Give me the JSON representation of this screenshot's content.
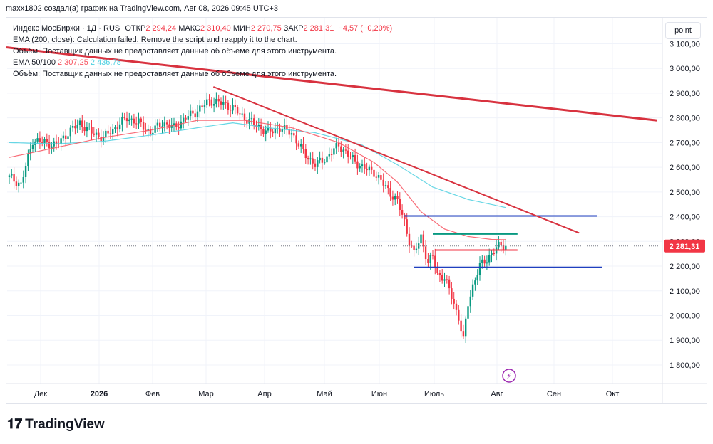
{
  "header": {
    "text": "maxx1802 создал(а) график на TradingView.com, Авг 08, 2026 09:45 UTC+3"
  },
  "legend": {
    "symbol": "Индекс МосБиржи · 1Д · RUS",
    "open_label": "ОТКР",
    "open": "2 294,24",
    "high_label": "МАКС",
    "high": "2 310,40",
    "low_label": "МИН",
    "low": "2 270,75",
    "close_label": "ЗАКР",
    "close": "2 281,31",
    "change": "−4,57 (−0,20%)",
    "ema200": "EMA (200, close): Calculation failed. Remove the script and reapply it to the chart.",
    "volume1": "Объём: Поставщик данных не предоставляет данные об объеме для этого инструмента.",
    "ema_label": "EMA 50/100",
    "ema50": "2 307,25",
    "ema100": "2 436,78",
    "volume2": "Объём: Поставщик данных не предоставляет данные об объеме для этого инструмента."
  },
  "point_button": "point",
  "logo": {
    "text": "TradingView"
  },
  "colors": {
    "up": "#089981",
    "down": "#f23645",
    "ema50": "#f7525f",
    "ema100": "#4dd0e1",
    "trend": "#d8323f",
    "level_blue": "#1f3fbf",
    "level_green": "#089981",
    "level_red": "#f23645"
  },
  "chart_data": {
    "type": "candlestick",
    "ylim": [
      1725,
      3205
    ],
    "y_ticks": [
      1800,
      1900,
      2000,
      2100,
      2200,
      2300,
      2400,
      2500,
      2600,
      2700,
      2800,
      2900,
      3000,
      3100
    ],
    "y_tick_labels": [
      "1 800,00",
      "1 900,00",
      "2 000,00",
      "2 100,00",
      "2 200,00",
      "2 300,00",
      "2 400,00",
      "2 500,00",
      "2 600,00",
      "2 700,00",
      "2 800,00",
      "2 900,00",
      "3 000,00",
      "3 100,00"
    ],
    "x_labels": [
      "Дек",
      "2026",
      "Фев",
      "Мар",
      "Апр",
      "Май",
      "Июн",
      "Июль",
      "Авг",
      "Сен",
      "Окт"
    ],
    "last_price": 2281.31,
    "last_price_label": "2 281,31",
    "close_anchors": [
      [
        0,
        2560
      ],
      [
        5,
        2530
      ],
      [
        10,
        2710
      ],
      [
        15,
        2700
      ],
      [
        20,
        2690
      ],
      [
        25,
        2740
      ],
      [
        30,
        2780
      ],
      [
        35,
        2740
      ],
      [
        40,
        2720
      ],
      [
        45,
        2760
      ],
      [
        50,
        2800
      ],
      [
        55,
        2780
      ],
      [
        60,
        2740
      ],
      [
        65,
        2780
      ],
      [
        70,
        2760
      ],
      [
        75,
        2800
      ],
      [
        80,
        2830
      ],
      [
        85,
        2870
      ],
      [
        90,
        2860
      ],
      [
        95,
        2840
      ],
      [
        100,
        2800
      ],
      [
        105,
        2770
      ],
      [
        110,
        2740
      ],
      [
        115,
        2760
      ],
      [
        120,
        2740
      ],
      [
        125,
        2660
      ],
      [
        130,
        2610
      ],
      [
        135,
        2640
      ],
      [
        140,
        2690
      ],
      [
        145,
        2640
      ],
      [
        150,
        2600
      ],
      [
        155,
        2580
      ],
      [
        160,
        2520
      ],
      [
        165,
        2460
      ],
      [
        168,
        2380
      ],
      [
        170,
        2300
      ],
      [
        172,
        2250
      ],
      [
        175,
        2320
      ],
      [
        178,
        2210
      ],
      [
        180,
        2240
      ],
      [
        182,
        2170
      ],
      [
        185,
        2150
      ],
      [
        188,
        2080
      ],
      [
        191,
        1990
      ],
      [
        193,
        1900
      ],
      [
        195,
        2050
      ],
      [
        197,
        2120
      ],
      [
        200,
        2200
      ],
      [
        203,
        2230
      ],
      [
        206,
        2260
      ],
      [
        209,
        2290
      ],
      [
        211,
        2281
      ]
    ],
    "ema50_anchors": [
      [
        0,
        2640
      ],
      [
        20,
        2680
      ],
      [
        40,
        2720
      ],
      [
        60,
        2750
      ],
      [
        80,
        2790
      ],
      [
        100,
        2790
      ],
      [
        120,
        2760
      ],
      [
        140,
        2700
      ],
      [
        155,
        2620
      ],
      [
        165,
        2540
      ],
      [
        175,
        2420
      ],
      [
        185,
        2350
      ],
      [
        195,
        2320
      ],
      [
        205,
        2308
      ],
      [
        211,
        2307
      ]
    ],
    "ema100_anchors": [
      [
        0,
        2700
      ],
      [
        20,
        2695
      ],
      [
        40,
        2705
      ],
      [
        60,
        2730
      ],
      [
        80,
        2760
      ],
      [
        95,
        2780
      ],
      [
        110,
        2760
      ],
      [
        130,
        2740
      ],
      [
        150,
        2690
      ],
      [
        165,
        2610
      ],
      [
        180,
        2520
      ],
      [
        195,
        2470
      ],
      [
        211,
        2437
      ]
    ],
    "trendlines": [
      {
        "name": "long-trendline",
        "x1": -1,
        "y1": 3085,
        "x2": 275,
        "y2": 2790,
        "color": "#d8323f",
        "width": 3
      },
      {
        "name": "short-trendline",
        "x1": 87,
        "y1": 2925,
        "x2": 242,
        "y2": 2335,
        "color": "#d8323f",
        "width": 2
      }
    ],
    "levels": [
      {
        "name": "level-2400",
        "y": 2403,
        "x1": 168,
        "x2": 250,
        "color": "#1f3fbf"
      },
      {
        "name": "level-2195",
        "y": 2195,
        "x1": 172,
        "x2": 252,
        "color": "#1f3fbf"
      },
      {
        "name": "level-2330",
        "y": 2330,
        "x1": 180,
        "x2": 216,
        "color": "#089981"
      },
      {
        "name": "level-2265",
        "y": 2265,
        "x1": 181,
        "x2": 216,
        "color": "#f23645"
      }
    ],
    "price_line_color": "#787b86"
  }
}
